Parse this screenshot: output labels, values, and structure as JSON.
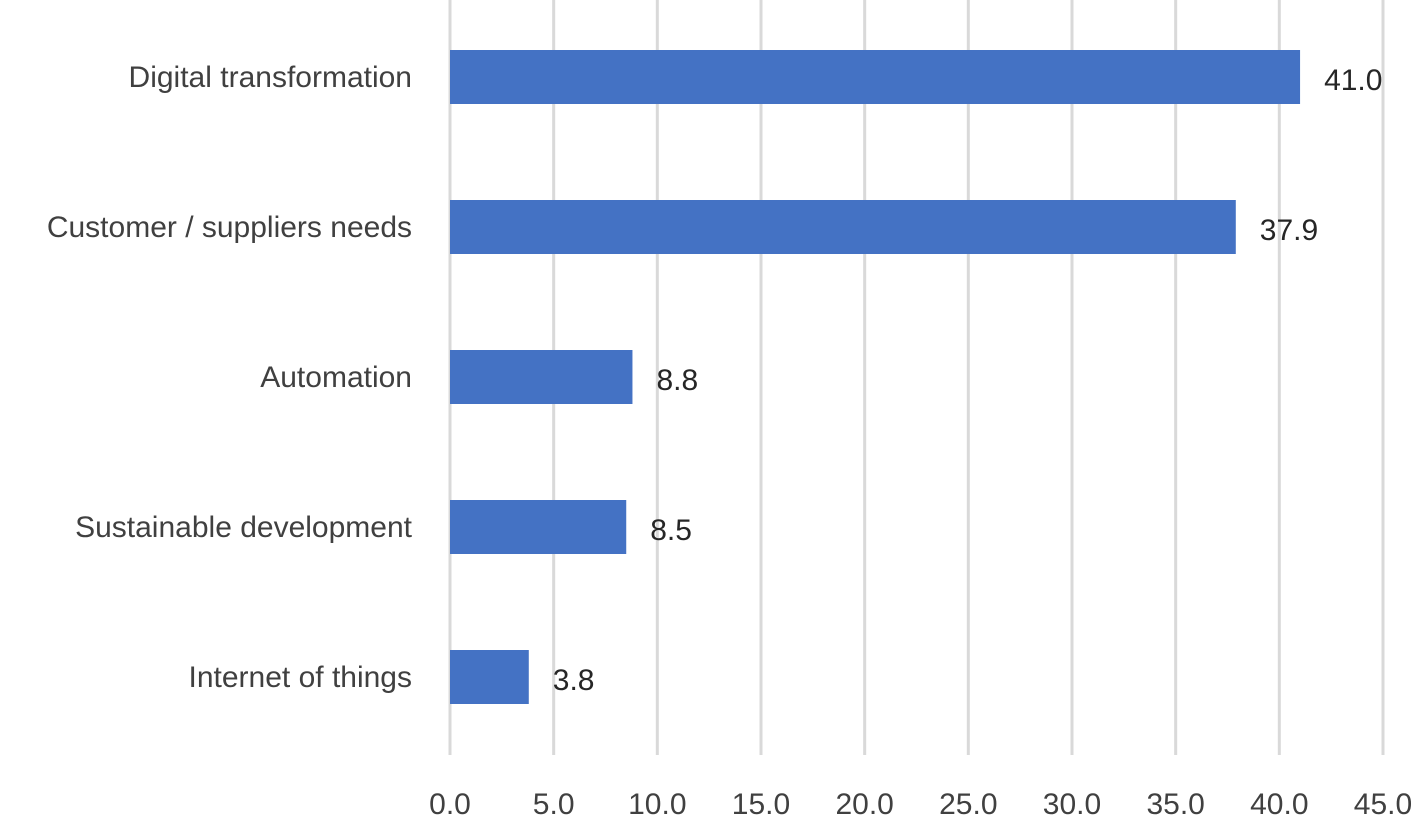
{
  "chart_data": {
    "type": "bar",
    "orientation": "horizontal",
    "categories": [
      "Digital transformation",
      "Customer / suppliers needs",
      "Automation",
      "Sustainable development",
      "Internet of things"
    ],
    "values": [
      41.0,
      37.9,
      8.8,
      8.5,
      3.8
    ],
    "value_labels": [
      "41.0",
      "37.9",
      "8.8",
      "8.5",
      "3.8"
    ],
    "xlim": [
      0,
      45
    ],
    "xticks": [
      0,
      5,
      10,
      15,
      20,
      25,
      30,
      35,
      40,
      45
    ],
    "xtick_labels": [
      "0.0",
      "5.0",
      "10.0",
      "15.0",
      "20.0",
      "25.0",
      "30.0",
      "35.0",
      "40.0",
      "45.0"
    ],
    "grid": true,
    "legend": "none",
    "colors": {
      "bar": "#4472c4",
      "grid": "#d9d9d9",
      "text": "#404040"
    }
  }
}
